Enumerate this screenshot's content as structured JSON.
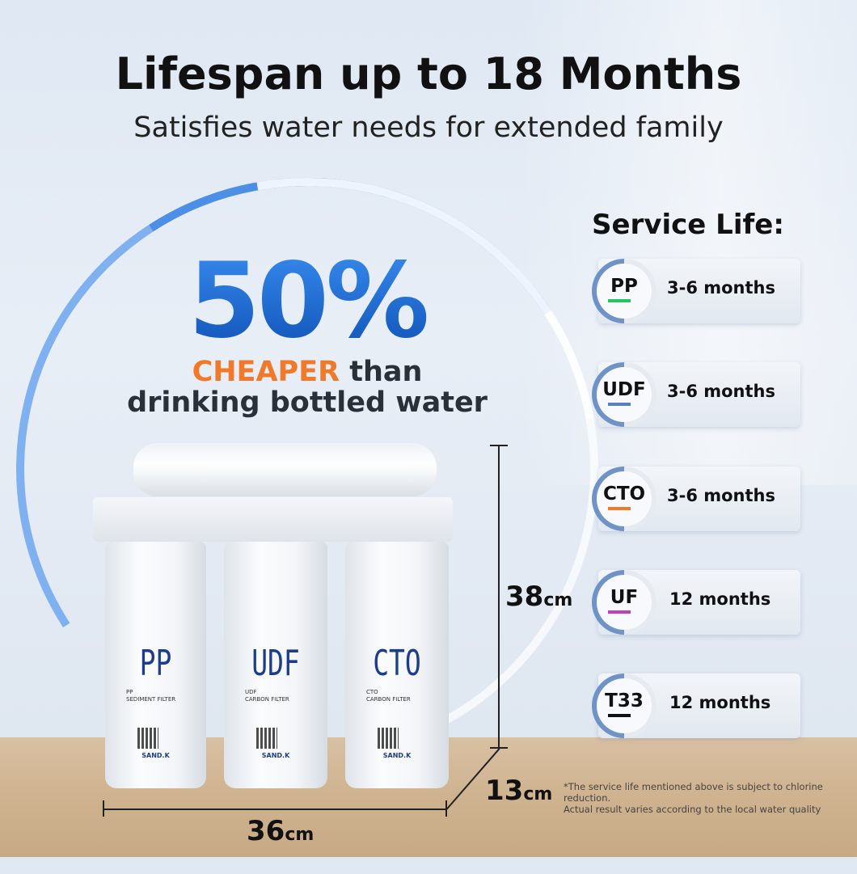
{
  "title": "Lifespan up to 18 Months",
  "subtitle": "Satisfies water needs for extended family",
  "promo": {
    "percent": "50%",
    "highlight": "CHEAPER",
    "than": " than",
    "line2": "drinking bottled water"
  },
  "service_life": {
    "heading": "Service Life:",
    "items": [
      {
        "code": "PP",
        "life": "3-6 months",
        "color": "#22c55e"
      },
      {
        "code": "UDF",
        "life": "3-6 months",
        "color": "#5b7fb8"
      },
      {
        "code": "CTO",
        "life": "3-6 months",
        "color": "#f07a2a"
      },
      {
        "code": "UF",
        "life": "12 months",
        "color": "#c040c0"
      },
      {
        "code": "T33",
        "life": "12 months",
        "color": "#111111"
      }
    ]
  },
  "filters": [
    {
      "label": "PP",
      "sub1": "PP",
      "sub2": "SEDIMENT FILTER",
      "brand": "SAND.K"
    },
    {
      "label": "UDF",
      "sub1": "UDF",
      "sub2": "CARBON FILTER",
      "brand": "SAND.K"
    },
    {
      "label": "CTO",
      "sub1": "CTO",
      "sub2": "CARBON FILTER",
      "brand": "SAND.K"
    }
  ],
  "dimensions": {
    "height": "38",
    "width": "36",
    "depth": "13",
    "unit": "cm"
  },
  "note": {
    "line1": "*The service life mentioned above is subject to chlorine reduction.",
    "line2": "Actual result varies according to the local water quality"
  }
}
